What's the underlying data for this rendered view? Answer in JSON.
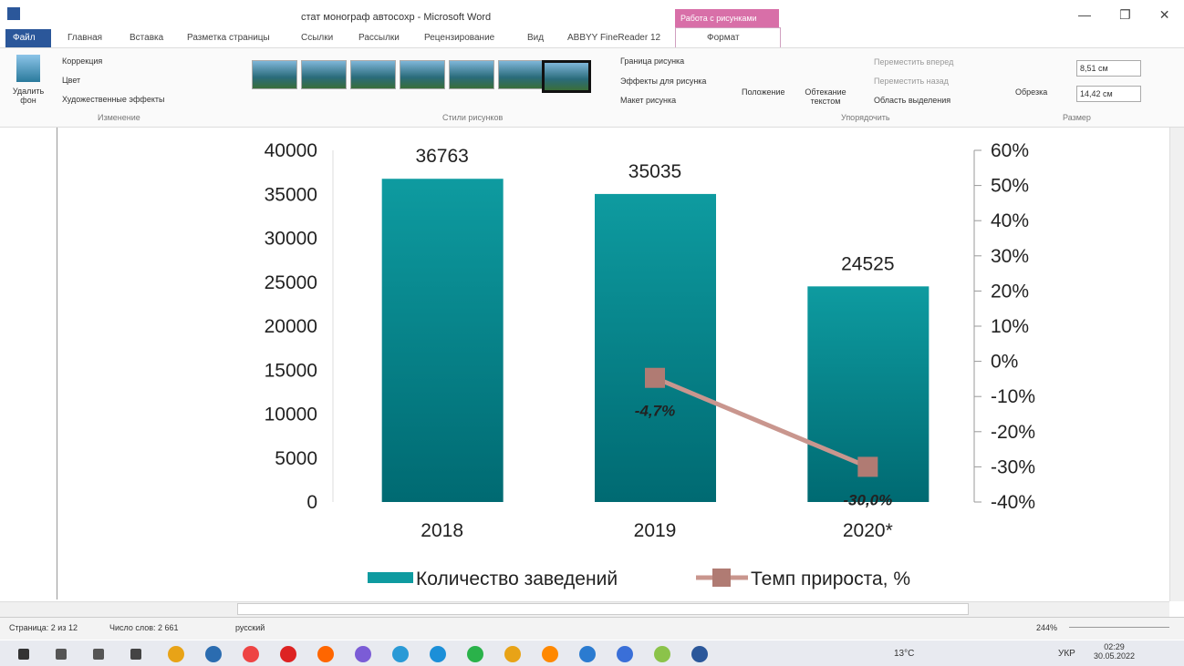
{
  "window": {
    "title": "стат монограф автосохр - Microsoft Word",
    "context_tab": "Работа с рисунками"
  },
  "ribbon": {
    "tabs": [
      "Файл",
      "Главная",
      "Вставка",
      "Разметка страницы",
      "Ссылки",
      "Рассылки",
      "Рецензирование",
      "Вид",
      "ABBYY FineReader 12",
      "Формат"
    ],
    "remove_bg": "Удалить фон",
    "adjust": [
      "Коррекция",
      "Цвет",
      "Художественные эффекты"
    ],
    "styles": [
      "Граница рисунка",
      "Эффекты для рисунка",
      "Макет рисунка"
    ],
    "arrange_big": [
      "Положение",
      "Обтекание текстом"
    ],
    "arrange": [
      "Переместить вперед",
      "Переместить назад",
      "Область выделения"
    ],
    "crop": "Обрезка",
    "sizes": [
      "8,51 см",
      "14,42 см"
    ],
    "groups": [
      "Изменение",
      "Стили рисунков",
      "Упорядочить",
      "Размер"
    ]
  },
  "chart_data": {
    "type": "bar",
    "categories": [
      "2018",
      "2019",
      "2020*"
    ],
    "series": [
      {
        "name": "Количество заведений",
        "type": "bar",
        "color": "#0e9ba0",
        "values": [
          36763,
          35035,
          24525
        ]
      },
      {
        "name": "Темп прироста, %",
        "type": "line",
        "axis": "y2",
        "color": "#c9968e",
        "values": [
          null,
          -4.7,
          -30.0
        ],
        "value_labels": [
          null,
          "-4,7%",
          "-30,0%"
        ]
      }
    ],
    "ylim": [
      0,
      40000
    ],
    "yticks": [
      0,
      5000,
      10000,
      15000,
      20000,
      25000,
      30000,
      35000,
      40000
    ],
    "y2lim": [
      -40,
      60
    ],
    "y2ticks": [
      {
        "value": -40,
        "label": "-40%"
      },
      {
        "value": -30,
        "label": "-30%"
      },
      {
        "value": -20,
        "label": "-20%"
      },
      {
        "value": -10,
        "label": "-10%"
      },
      {
        "value": 0,
        "label": "0%"
      },
      {
        "value": 10,
        "label": "10%"
      },
      {
        "value": 20,
        "label": "20%"
      },
      {
        "value": 30,
        "label": "30%"
      },
      {
        "value": 40,
        "label": "40%"
      },
      {
        "value": 50,
        "label": "50%"
      },
      {
        "value": 60,
        "label": "60%"
      }
    ],
    "legend": "bottom"
  },
  "status_bar": {
    "page": "Страница: 2 из 12",
    "words": "Число слов: 2 661",
    "language": "русский",
    "zoom": "244%"
  },
  "taskbar": {
    "weather": "13°C",
    "language": "УКР",
    "time": "02:29",
    "date": "30.05.2022"
  }
}
